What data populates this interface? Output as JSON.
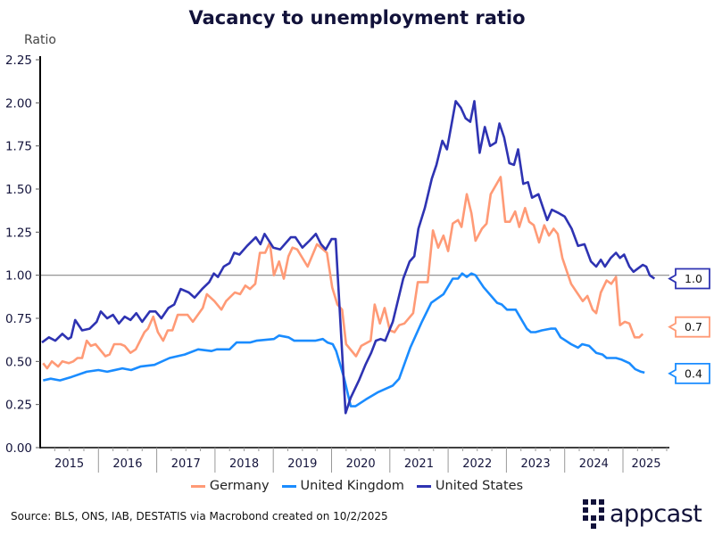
{
  "chart_data": {
    "type": "line",
    "title": "Vacancy to unemployment ratio",
    "ylabel": "Ratio",
    "xlabel": "",
    "ylim": [
      0,
      2.25
    ],
    "xlim": [
      2015,
      2025.7
    ],
    "yticks": [
      "0.00",
      "0.25",
      "0.50",
      "0.75",
      "1.00",
      "1.25",
      "1.50",
      "1.75",
      "2.00",
      "2.25"
    ],
    "xticks": [
      "2015",
      "2016",
      "2017",
      "2018",
      "2019",
      "2020",
      "2021",
      "2022",
      "2023",
      "2024",
      "2025"
    ],
    "reference_line": 1.0,
    "legend_position": "bottom",
    "series": [
      {
        "name": "Germany",
        "color": "#ff9a76",
        "end_label": "0.7",
        "end_value": 0.7,
        "points": [
          [
            2015.05,
            0.49
          ],
          [
            2015.12,
            0.46
          ],
          [
            2015.2,
            0.5
          ],
          [
            2015.31,
            0.47
          ],
          [
            2015.38,
            0.5
          ],
          [
            2015.49,
            0.49
          ],
          [
            2015.57,
            0.5
          ],
          [
            2015.64,
            0.52
          ],
          [
            2015.72,
            0.52
          ],
          [
            2015.8,
            0.62
          ],
          [
            2015.87,
            0.59
          ],
          [
            2015.95,
            0.6
          ],
          [
            2016.12,
            0.53
          ],
          [
            2016.19,
            0.54
          ],
          [
            2016.27,
            0.6
          ],
          [
            2016.38,
            0.6
          ],
          [
            2016.45,
            0.59
          ],
          [
            2016.55,
            0.55
          ],
          [
            2016.64,
            0.57
          ],
          [
            2016.79,
            0.67
          ],
          [
            2016.85,
            0.69
          ],
          [
            2016.94,
            0.76
          ],
          [
            2017.02,
            0.67
          ],
          [
            2017.11,
            0.62
          ],
          [
            2017.19,
            0.68
          ],
          [
            2017.27,
            0.68
          ],
          [
            2017.36,
            0.77
          ],
          [
            2017.53,
            0.77
          ],
          [
            2017.62,
            0.73
          ],
          [
            2017.79,
            0.81
          ],
          [
            2017.86,
            0.89
          ],
          [
            2017.99,
            0.85
          ],
          [
            2018.11,
            0.8
          ],
          [
            2018.19,
            0.85
          ],
          [
            2018.34,
            0.9
          ],
          [
            2018.43,
            0.89
          ],
          [
            2018.52,
            0.94
          ],
          [
            2018.6,
            0.92
          ],
          [
            2018.69,
            0.95
          ],
          [
            2018.77,
            1.13
          ],
          [
            2018.86,
            1.13
          ],
          [
            2018.94,
            1.19
          ],
          [
            2019.01,
            1.0
          ],
          [
            2019.1,
            1.08
          ],
          [
            2019.18,
            0.98
          ],
          [
            2019.26,
            1.11
          ],
          [
            2019.33,
            1.16
          ],
          [
            2019.41,
            1.15
          ],
          [
            2019.59,
            1.05
          ],
          [
            2019.75,
            1.18
          ],
          [
            2019.92,
            1.13
          ],
          [
            2020.01,
            0.93
          ],
          [
            2020.1,
            0.83
          ],
          [
            2020.18,
            0.8
          ],
          [
            2020.25,
            0.6
          ],
          [
            2020.42,
            0.53
          ],
          [
            2020.51,
            0.59
          ],
          [
            2020.67,
            0.62
          ],
          [
            2020.74,
            0.83
          ],
          [
            2020.83,
            0.72
          ],
          [
            2020.91,
            0.81
          ],
          [
            2021.0,
            0.68
          ],
          [
            2021.08,
            0.67
          ],
          [
            2021.16,
            0.71
          ],
          [
            2021.25,
            0.72
          ],
          [
            2021.4,
            0.78
          ],
          [
            2021.48,
            0.96
          ],
          [
            2021.65,
            0.96
          ],
          [
            2021.74,
            1.26
          ],
          [
            2021.83,
            1.16
          ],
          [
            2021.92,
            1.23
          ],
          [
            2022.0,
            1.14
          ],
          [
            2022.08,
            1.3
          ],
          [
            2022.17,
            1.32
          ],
          [
            2022.23,
            1.28
          ],
          [
            2022.32,
            1.47
          ],
          [
            2022.4,
            1.36
          ],
          [
            2022.47,
            1.2
          ],
          [
            2022.58,
            1.27
          ],
          [
            2022.66,
            1.3
          ],
          [
            2022.73,
            1.47
          ],
          [
            2022.9,
            1.57
          ],
          [
            2022.98,
            1.31
          ],
          [
            2023.06,
            1.31
          ],
          [
            2023.15,
            1.37
          ],
          [
            2023.22,
            1.28
          ],
          [
            2023.32,
            1.39
          ],
          [
            2023.39,
            1.31
          ],
          [
            2023.47,
            1.29
          ],
          [
            2023.56,
            1.19
          ],
          [
            2023.65,
            1.29
          ],
          [
            2023.73,
            1.23
          ],
          [
            2023.81,
            1.27
          ],
          [
            2023.88,
            1.24
          ],
          [
            2023.96,
            1.1
          ],
          [
            2024.04,
            1.02
          ],
          [
            2024.11,
            0.95
          ],
          [
            2024.19,
            0.91
          ],
          [
            2024.31,
            0.85
          ],
          [
            2024.39,
            0.88
          ],
          [
            2024.48,
            0.8
          ],
          [
            2024.54,
            0.78
          ],
          [
            2024.62,
            0.9
          ],
          [
            2024.72,
            0.97
          ],
          [
            2024.8,
            0.95
          ],
          [
            2024.88,
            0.99
          ],
          [
            2024.95,
            0.71
          ],
          [
            2025.03,
            0.73
          ],
          [
            2025.11,
            0.72
          ],
          [
            2025.2,
            0.64
          ],
          [
            2025.28,
            0.64
          ],
          [
            2025.34,
            0.66
          ]
        ]
      },
      {
        "name": "United Kingdom",
        "color": "#1a8cff",
        "end_label": "0.4",
        "end_value": 0.43,
        "points": [
          [
            2015.05,
            0.39
          ],
          [
            2015.18,
            0.4
          ],
          [
            2015.34,
            0.39
          ],
          [
            2015.54,
            0.41
          ],
          [
            2015.8,
            0.44
          ],
          [
            2016.0,
            0.45
          ],
          [
            2016.15,
            0.44
          ],
          [
            2016.41,
            0.46
          ],
          [
            2016.56,
            0.45
          ],
          [
            2016.72,
            0.47
          ],
          [
            2016.96,
            0.48
          ],
          [
            2017.22,
            0.52
          ],
          [
            2017.48,
            0.54
          ],
          [
            2017.71,
            0.57
          ],
          [
            2017.94,
            0.56
          ],
          [
            2018.03,
            0.57
          ],
          [
            2018.25,
            0.57
          ],
          [
            2018.37,
            0.61
          ],
          [
            2018.6,
            0.61
          ],
          [
            2018.71,
            0.62
          ],
          [
            2019.01,
            0.63
          ],
          [
            2019.1,
            0.65
          ],
          [
            2019.26,
            0.64
          ],
          [
            2019.36,
            0.62
          ],
          [
            2019.56,
            0.62
          ],
          [
            2019.72,
            0.62
          ],
          [
            2019.85,
            0.63
          ],
          [
            2019.93,
            0.61
          ],
          [
            2020.02,
            0.6
          ],
          [
            2020.08,
            0.56
          ],
          [
            2020.21,
            0.41
          ],
          [
            2020.33,
            0.24
          ],
          [
            2020.41,
            0.24
          ],
          [
            2020.59,
            0.28
          ],
          [
            2020.79,
            0.32
          ],
          [
            2021.05,
            0.36
          ],
          [
            2021.16,
            0.4
          ],
          [
            2021.35,
            0.58
          ],
          [
            2021.55,
            0.73
          ],
          [
            2021.71,
            0.84
          ],
          [
            2021.92,
            0.89
          ],
          [
            2022.08,
            0.98
          ],
          [
            2022.17,
            0.98
          ],
          [
            2022.24,
            1.01
          ],
          [
            2022.32,
            0.99
          ],
          [
            2022.4,
            1.01
          ],
          [
            2022.47,
            1.0
          ],
          [
            2022.61,
            0.93
          ],
          [
            2022.84,
            0.84
          ],
          [
            2022.92,
            0.83
          ],
          [
            2023.01,
            0.8
          ],
          [
            2023.16,
            0.8
          ],
          [
            2023.35,
            0.69
          ],
          [
            2023.42,
            0.67
          ],
          [
            2023.5,
            0.67
          ],
          [
            2023.61,
            0.68
          ],
          [
            2023.76,
            0.69
          ],
          [
            2023.84,
            0.69
          ],
          [
            2023.93,
            0.64
          ],
          [
            2024.11,
            0.6
          ],
          [
            2024.23,
            0.58
          ],
          [
            2024.3,
            0.6
          ],
          [
            2024.42,
            0.59
          ],
          [
            2024.54,
            0.55
          ],
          [
            2024.65,
            0.54
          ],
          [
            2024.72,
            0.52
          ],
          [
            2024.88,
            0.52
          ],
          [
            2024.98,
            0.51
          ],
          [
            2025.11,
            0.49
          ],
          [
            2025.21,
            0.455
          ],
          [
            2025.31,
            0.44
          ],
          [
            2025.37,
            0.435
          ]
        ]
      },
      {
        "name": "United States",
        "color": "#2e33b2",
        "end_label": "1.0",
        "end_value": 0.98,
        "points": [
          [
            2015.03,
            0.61
          ],
          [
            2015.15,
            0.64
          ],
          [
            2015.26,
            0.62
          ],
          [
            2015.38,
            0.66
          ],
          [
            2015.48,
            0.63
          ],
          [
            2015.53,
            0.64
          ],
          [
            2015.6,
            0.74
          ],
          [
            2015.72,
            0.68
          ],
          [
            2015.85,
            0.69
          ],
          [
            2015.97,
            0.73
          ],
          [
            2016.04,
            0.79
          ],
          [
            2016.15,
            0.75
          ],
          [
            2016.25,
            0.77
          ],
          [
            2016.35,
            0.72
          ],
          [
            2016.45,
            0.76
          ],
          [
            2016.55,
            0.74
          ],
          [
            2016.65,
            0.78
          ],
          [
            2016.75,
            0.73
          ],
          [
            2016.88,
            0.79
          ],
          [
            2016.98,
            0.79
          ],
          [
            2017.08,
            0.75
          ],
          [
            2017.2,
            0.81
          ],
          [
            2017.3,
            0.83
          ],
          [
            2017.41,
            0.92
          ],
          [
            2017.55,
            0.9
          ],
          [
            2017.65,
            0.87
          ],
          [
            2017.78,
            0.92
          ],
          [
            2017.9,
            0.96
          ],
          [
            2017.98,
            1.01
          ],
          [
            2018.05,
            0.99
          ],
          [
            2018.15,
            1.05
          ],
          [
            2018.25,
            1.07
          ],
          [
            2018.33,
            1.13
          ],
          [
            2018.42,
            1.12
          ],
          [
            2018.55,
            1.17
          ],
          [
            2018.7,
            1.22
          ],
          [
            2018.78,
            1.18
          ],
          [
            2018.85,
            1.24
          ],
          [
            2019.0,
            1.16
          ],
          [
            2019.12,
            1.15
          ],
          [
            2019.3,
            1.22
          ],
          [
            2019.38,
            1.22
          ],
          [
            2019.5,
            1.16
          ],
          [
            2019.62,
            1.2
          ],
          [
            2019.73,
            1.24
          ],
          [
            2019.82,
            1.18
          ],
          [
            2019.9,
            1.15
          ],
          [
            2020.0,
            1.21
          ],
          [
            2020.07,
            1.21
          ],
          [
            2020.24,
            0.2
          ],
          [
            2020.33,
            0.29
          ],
          [
            2020.47,
            0.39
          ],
          [
            2020.58,
            0.48
          ],
          [
            2020.68,
            0.55
          ],
          [
            2020.76,
            0.62
          ],
          [
            2020.84,
            0.63
          ],
          [
            2020.92,
            0.62
          ],
          [
            2021.05,
            0.73
          ],
          [
            2021.23,
            0.98
          ],
          [
            2021.34,
            1.08
          ],
          [
            2021.42,
            1.11
          ],
          [
            2021.49,
            1.27
          ],
          [
            2021.6,
            1.39
          ],
          [
            2021.72,
            1.56
          ],
          [
            2021.8,
            1.64
          ],
          [
            2021.9,
            1.78
          ],
          [
            2021.98,
            1.73
          ],
          [
            2022.05,
            1.86
          ],
          [
            2022.13,
            2.01
          ],
          [
            2022.22,
            1.97
          ],
          [
            2022.3,
            1.91
          ],
          [
            2022.38,
            1.89
          ],
          [
            2022.45,
            2.01
          ],
          [
            2022.54,
            1.71
          ],
          [
            2022.63,
            1.86
          ],
          [
            2022.72,
            1.75
          ],
          [
            2022.82,
            1.77
          ],
          [
            2022.88,
            1.88
          ],
          [
            2022.96,
            1.8
          ],
          [
            2023.05,
            1.65
          ],
          [
            2023.13,
            1.64
          ],
          [
            2023.2,
            1.73
          ],
          [
            2023.29,
            1.53
          ],
          [
            2023.37,
            1.54
          ],
          [
            2023.44,
            1.45
          ],
          [
            2023.55,
            1.47
          ],
          [
            2023.7,
            1.32
          ],
          [
            2023.78,
            1.38
          ],
          [
            2023.9,
            1.36
          ],
          [
            2024.0,
            1.34
          ],
          [
            2024.12,
            1.27
          ],
          [
            2024.23,
            1.17
          ],
          [
            2024.34,
            1.18
          ],
          [
            2024.45,
            1.08
          ],
          [
            2024.54,
            1.05
          ],
          [
            2024.62,
            1.09
          ],
          [
            2024.69,
            1.05
          ],
          [
            2024.79,
            1.1
          ],
          [
            2024.88,
            1.13
          ],
          [
            2024.95,
            1.1
          ],
          [
            2025.02,
            1.12
          ],
          [
            2025.11,
            1.05
          ],
          [
            2025.18,
            1.02
          ],
          [
            2025.26,
            1.04
          ],
          [
            2025.34,
            1.06
          ],
          [
            2025.4,
            1.05
          ],
          [
            2025.46,
            1.0
          ],
          [
            2025.54,
            0.98
          ]
        ]
      }
    ]
  },
  "footer": {
    "source": "Source: BLS, ONS, IAB, DESTATIS via Macrobond created on 10/2/2025",
    "brand": "appcast"
  }
}
